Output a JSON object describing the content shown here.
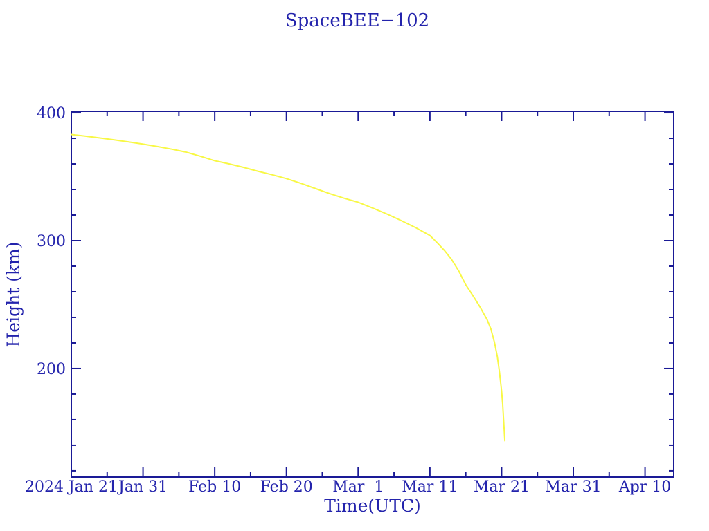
{
  "colors": {
    "background": "#ffffff",
    "axis": "#1a1a96",
    "text": "#2323ac",
    "curve": "#f8f845"
  },
  "chart_data": {
    "type": "line",
    "title": "SpaceBEE−102",
    "xlabel": "Time(UTC)",
    "ylabel": "Height (km)",
    "legend": "none",
    "grid": false,
    "x_axis": {
      "unit": "date",
      "start_date": "2024 Jan 21",
      "domain_days": [
        0,
        84
      ],
      "major_tick_days": [
        0,
        10,
        20,
        30,
        40,
        50,
        60,
        70,
        80
      ],
      "minor_tick_days": [
        5,
        15,
        25,
        35,
        45,
        55,
        65,
        75
      ],
      "tick_labels": [
        "2024 Jan 21",
        "Jan 31",
        "Feb 10",
        "Feb 20",
        "Mar  1",
        "Mar 11",
        "Mar 21",
        "Mar 31",
        "Apr 10"
      ]
    },
    "y_axis": {
      "unit": "km",
      "domain": [
        115.1,
        401.1
      ],
      "major_ticks": [
        200,
        300,
        400
      ],
      "minor_ticks": [
        120,
        140,
        160,
        180,
        220,
        240,
        260,
        280,
        320,
        340,
        360,
        380
      ],
      "tick_labels": [
        "200",
        "300",
        "400"
      ]
    },
    "series": [
      {
        "name": "SpaceBEE-102 orbital height",
        "color": "#f8f845",
        "points_day_km": [
          [
            0,
            383.0
          ],
          [
            2,
            381.7
          ],
          [
            4,
            380.3
          ],
          [
            6,
            378.8
          ],
          [
            8,
            377.2
          ],
          [
            10,
            375.5
          ],
          [
            12,
            373.6
          ],
          [
            14,
            371.5
          ],
          [
            16,
            369.2
          ],
          [
            18,
            366.0
          ],
          [
            20,
            362.5
          ],
          [
            22,
            360.0
          ],
          [
            24,
            357.3
          ],
          [
            26,
            354.3
          ],
          [
            28,
            351.5
          ],
          [
            30,
            348.5
          ],
          [
            32,
            344.8
          ],
          [
            34,
            340.8
          ],
          [
            36,
            336.8
          ],
          [
            38,
            333.2
          ],
          [
            40,
            330.0
          ],
          [
            42,
            325.5
          ],
          [
            44,
            320.8
          ],
          [
            46,
            315.7
          ],
          [
            48,
            310.2
          ],
          [
            50,
            304.0
          ],
          [
            51,
            298.5
          ],
          [
            52,
            292.5
          ],
          [
            53,
            285.5
          ],
          [
            54,
            276.5
          ],
          [
            55,
            265.5
          ],
          [
            56,
            257.0
          ],
          [
            57,
            248.0
          ],
          [
            58,
            238.0
          ],
          [
            58.5,
            231.0
          ],
          [
            59,
            220.5
          ],
          [
            59.4,
            209.5
          ],
          [
            59.7,
            197.5
          ],
          [
            60,
            182.5
          ],
          [
            60.15,
            172.0
          ],
          [
            60.3,
            158.0
          ],
          [
            60.45,
            143.5
          ]
        ]
      }
    ]
  }
}
